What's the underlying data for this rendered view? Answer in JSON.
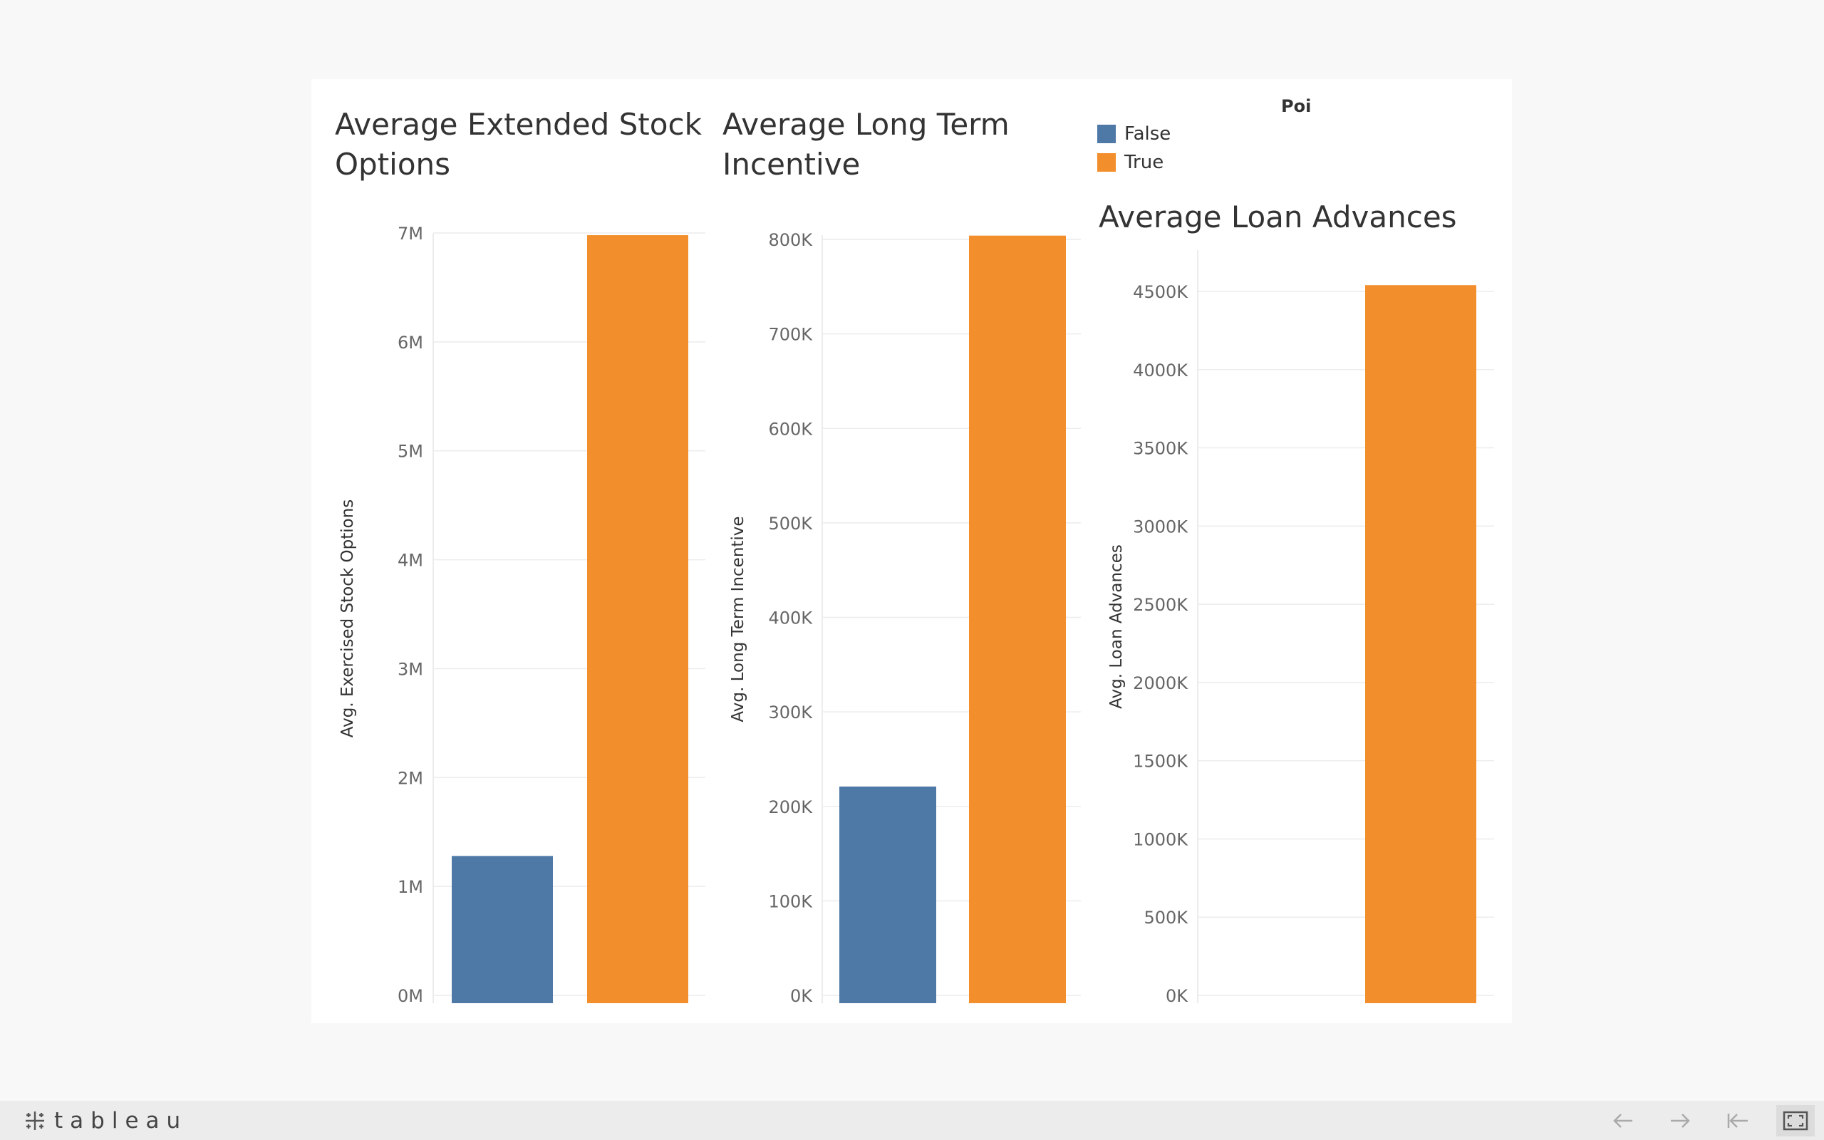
{
  "legend": {
    "title": "Poi",
    "items": [
      {
        "label": "False",
        "color": "#4e79a7"
      },
      {
        "label": "True",
        "color": "#f28e2b"
      }
    ]
  },
  "chart_data": [
    {
      "type": "bar",
      "title": "Average Extended Stock Options",
      "title_lines": [
        "Average Extended Stock",
        "Options"
      ],
      "xlabel": "",
      "ylabel": "Avg. Exercised Stock Options",
      "categories": [
        "False",
        "True"
      ],
      "values": [
        1280000,
        6980000
      ],
      "colors": [
        "#4e79a7",
        "#f28e2b"
      ],
      "ylim": [
        0,
        7000000
      ],
      "ticks": [
        0,
        1000000,
        2000000,
        3000000,
        4000000,
        5000000,
        6000000,
        7000000
      ],
      "tick_labels": [
        "0M",
        "1M",
        "2M",
        "3M",
        "4M",
        "5M",
        "6M",
        "7M"
      ],
      "grid": true
    },
    {
      "type": "bar",
      "title": "Average Long Term Incentive",
      "title_lines": [
        "Average Long Term",
        "Incentive"
      ],
      "xlabel": "",
      "ylabel": "Avg. Long Term Incentive",
      "categories": [
        "False",
        "True"
      ],
      "values": [
        221000,
        804000
      ],
      "colors": [
        "#4e79a7",
        "#f28e2b"
      ],
      "ylim": [
        0,
        800000
      ],
      "ticks": [
        0,
        100000,
        200000,
        300000,
        400000,
        500000,
        600000,
        700000,
        800000
      ],
      "tick_labels": [
        "0K",
        "100K",
        "200K",
        "300K",
        "400K",
        "500K",
        "600K",
        "700K",
        "800K"
      ],
      "grid": true
    },
    {
      "type": "bar",
      "title": "Average Loan Advances",
      "title_lines": [
        "Average Loan Advances"
      ],
      "xlabel": "",
      "ylabel": "Avg. Loan Advances",
      "categories": [
        "False",
        "True"
      ],
      "values": [
        0,
        4540000
      ],
      "colors": [
        "#4e79a7",
        "#f28e2b"
      ],
      "ylim": [
        0,
        4500000
      ],
      "ticks": [
        0,
        500000,
        1000000,
        1500000,
        2000000,
        2500000,
        3000000,
        3500000,
        4000000,
        4500000
      ],
      "tick_labels": [
        "0K",
        "500K",
        "1000K",
        "1500K",
        "2000K",
        "2500K",
        "3000K",
        "3500K",
        "4000K",
        "4500K"
      ],
      "grid": true
    }
  ],
  "footer": {
    "logo_text": "tableau",
    "icons": [
      "back-arrow-icon",
      "forward-arrow-icon",
      "reset-icon",
      "fullscreen-icon"
    ]
  }
}
